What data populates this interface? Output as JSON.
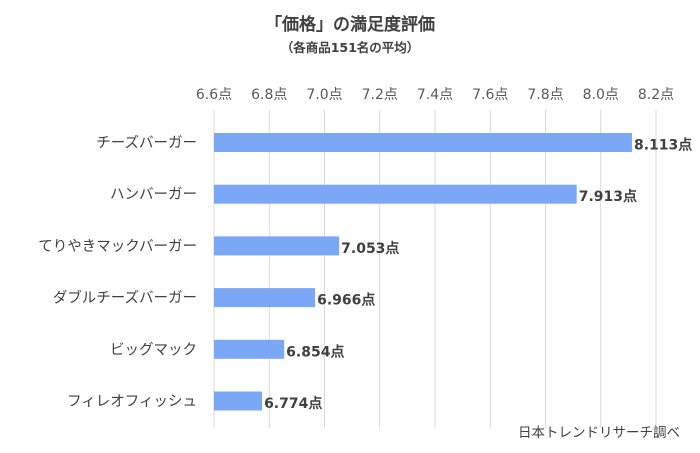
{
  "colors": {
    "bar": "#7aa7f6",
    "grid": "#d9d9d9",
    "text": "#404040"
  },
  "chart_data": {
    "type": "bar",
    "orientation": "horizontal",
    "title": "「価格」の満足度評価",
    "subtitle": "（各商品151名の平均）",
    "source": "日本トレンドリサーチ調べ",
    "categories": [
      "チーズバーガー",
      "ハンバーガー",
      "てりやきマックバーガー",
      "ダブルチーズバーガー",
      "ビッグマック",
      "フィレオフィッシュ"
    ],
    "values": [
      8.113,
      7.913,
      7.053,
      6.966,
      6.854,
      6.774
    ],
    "value_labels": [
      "8.113点",
      "7.913点",
      "7.053点",
      "6.966点",
      "6.854点",
      "6.774点"
    ],
    "x_ticks": [
      6.6,
      6.8,
      7.0,
      7.2,
      7.4,
      7.6,
      7.8,
      8.0,
      8.2
    ],
    "x_tick_labels": [
      "6.6点",
      "6.8点",
      "7.0点",
      "7.2点",
      "7.4点",
      "7.6点",
      "7.8点",
      "8.0点",
      "8.2点"
    ],
    "xlim": [
      6.6,
      8.2
    ],
    "axis_position": "top",
    "grid": true,
    "legend": false
  }
}
